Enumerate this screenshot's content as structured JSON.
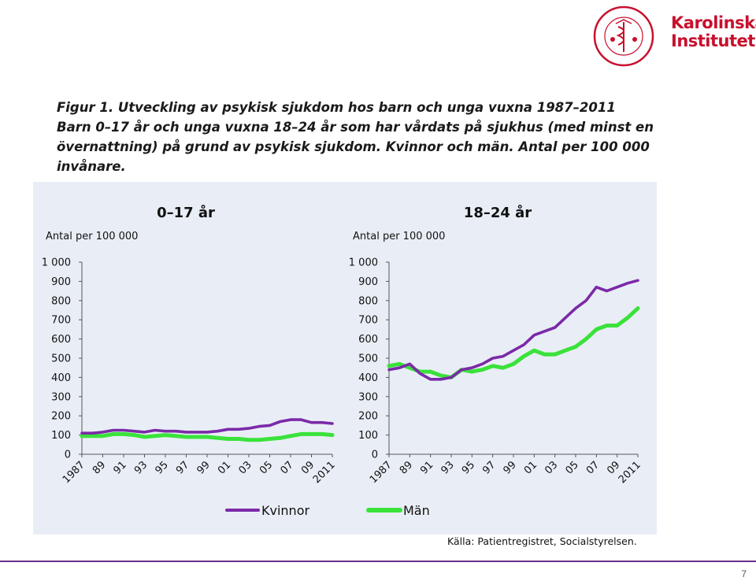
{
  "logo": {
    "name": "Karolinska Institutet",
    "line1": "Karolinska",
    "line2": "Institutet",
    "seal_text": "KAROLINSKA INSTITUTET · ANNO 1810",
    "color": "#c8102e"
  },
  "figure": {
    "title": "Figur 1. Utveckling av psykisk sjukdom hos barn och unga vuxna 1987–2011",
    "caption": "Barn 0–17 år och unga vuxna 18–24 år som har vårdats på sjukhus (med minst en övernattning) på grund av psykisk sjukdom. Kvinnor och män. Antal per 100 000 invånare."
  },
  "source": "Källa: Patientregistret, Socialstyrelsen.",
  "page_number": "7",
  "colors": {
    "kvinnor": "#7b2aa8",
    "man": "#3ae23a",
    "panel_bg": "#e9eef6",
    "rule": "#6a2c8a"
  },
  "legend": [
    {
      "label": "Kvinnor",
      "color": "#7b2aa8"
    },
    {
      "label": "Män",
      "color": "#3ae23a"
    }
  ],
  "chart_data": [
    {
      "type": "line",
      "title": "0–17 år",
      "ylabel": "Antal per 100 000",
      "ylim": [
        0,
        1000
      ],
      "yticks": [
        0,
        100,
        200,
        300,
        400,
        500,
        600,
        700,
        800,
        900,
        1000
      ],
      "ytick_labels": [
        "0",
        "100",
        "200",
        "300",
        "400",
        "500",
        "600",
        "700",
        "800",
        "900",
        "1 000"
      ],
      "x": [
        1987,
        1988,
        1989,
        1990,
        1991,
        1992,
        1993,
        1994,
        1995,
        1996,
        1997,
        1998,
        1999,
        2000,
        2001,
        2002,
        2003,
        2004,
        2005,
        2006,
        2007,
        2008,
        2009,
        2010,
        2011
      ],
      "xtick_values": [
        1987,
        1989,
        1991,
        1993,
        1995,
        1997,
        1999,
        2001,
        2003,
        2005,
        2007,
        2009,
        2011
      ],
      "xtick_labels": [
        "1987",
        "89",
        "91",
        "93",
        "95",
        "97",
        "99",
        "01",
        "03",
        "05",
        "07",
        "09",
        "2011"
      ],
      "grid": false,
      "series": [
        {
          "name": "Kvinnor",
          "values": [
            110,
            110,
            115,
            125,
            125,
            120,
            115,
            125,
            120,
            120,
            115,
            115,
            115,
            120,
            130,
            130,
            135,
            145,
            150,
            170,
            180,
            180,
            165,
            165,
            160
          ]
        },
        {
          "name": "Män",
          "values": [
            95,
            95,
            95,
            105,
            105,
            100,
            90,
            95,
            100,
            95,
            90,
            90,
            90,
            85,
            80,
            80,
            75,
            75,
            80,
            85,
            95,
            105,
            105,
            105,
            100
          ]
        }
      ]
    },
    {
      "type": "line",
      "title": "18–24 år",
      "ylabel": "Antal per 100 000",
      "ylim": [
        0,
        1000
      ],
      "yticks": [
        0,
        100,
        200,
        300,
        400,
        500,
        600,
        700,
        800,
        900,
        1000
      ],
      "ytick_labels": [
        "0",
        "100",
        "200",
        "300",
        "400",
        "500",
        "600",
        "700",
        "800",
        "900",
        "1 000"
      ],
      "x": [
        1987,
        1988,
        1989,
        1990,
        1991,
        1992,
        1993,
        1994,
        1995,
        1996,
        1997,
        1998,
        1999,
        2000,
        2001,
        2002,
        2003,
        2004,
        2005,
        2006,
        2007,
        2008,
        2009,
        2010,
        2011
      ],
      "xtick_values": [
        1987,
        1989,
        1991,
        1993,
        1995,
        1997,
        1999,
        2001,
        2003,
        2005,
        2007,
        2009,
        2011
      ],
      "xtick_labels": [
        "1987",
        "89",
        "91",
        "93",
        "95",
        "97",
        "99",
        "01",
        "03",
        "05",
        "07",
        "09",
        "2011"
      ],
      "grid": false,
      "series": [
        {
          "name": "Kvinnor",
          "values": [
            440,
            450,
            470,
            420,
            390,
            390,
            400,
            440,
            450,
            470,
            500,
            510,
            540,
            570,
            620,
            640,
            660,
            710,
            760,
            800,
            870,
            850,
            870,
            890,
            905
          ]
        },
        {
          "name": "Män",
          "values": [
            460,
            470,
            450,
            430,
            430,
            410,
            400,
            440,
            430,
            440,
            460,
            450,
            470,
            510,
            540,
            520,
            520,
            540,
            560,
            600,
            650,
            670,
            670,
            710,
            760
          ]
        }
      ]
    }
  ]
}
